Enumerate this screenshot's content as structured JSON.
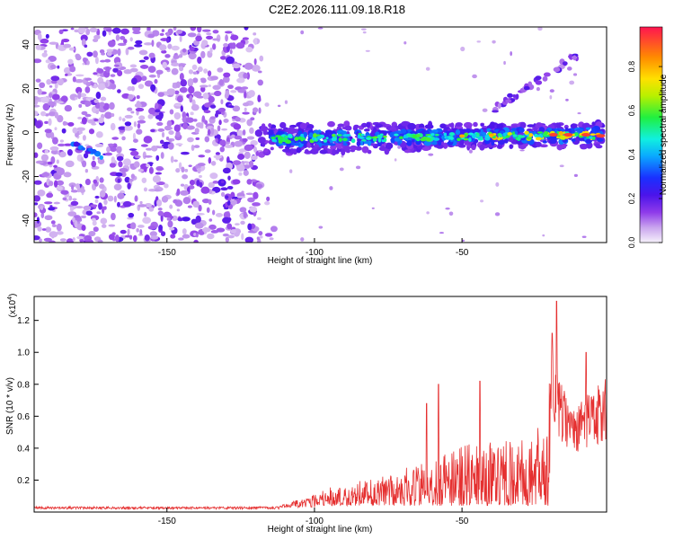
{
  "figure": {
    "title": "C2E2.2026.111.09.18.R18"
  },
  "chart_data": [
    {
      "type": "heatmap",
      "name": "spectrogram",
      "xlabel": "Height of straight line (km)",
      "ylabel": "Frequency (Hz)",
      "xlim": [
        -195,
        -1
      ],
      "ylim": [
        -50,
        48
      ],
      "xticks": [
        -150,
        -100,
        -50
      ],
      "yticks": [
        -40,
        -20,
        0,
        20,
        40
      ],
      "colorbar": {
        "label": "Normalized spectral amplitude",
        "range": [
          0,
          0.98
        ],
        "ticks": [
          0.0,
          0.2,
          0.4,
          0.6,
          0.8
        ]
      },
      "features": [
        {
          "description": "broadband noise",
          "x_range": [
            -195,
            -118
          ],
          "y_range": [
            -50,
            48
          ],
          "amplitude": 0.15
        },
        {
          "description": "main signal trace",
          "x_from": -118,
          "x_to": -2,
          "y_from": -3,
          "y_to": -1,
          "amplitude_max": 0.95
        },
        {
          "description": "faint harmonic line",
          "x_from": -40,
          "x_to": -10,
          "y_from": 10,
          "y_to": 36,
          "amplitude": 0.25
        },
        {
          "description": "short feature",
          "x_from": -182,
          "x_to": -172,
          "y_from": -5,
          "y_to": -11,
          "amplitude": 0.35
        }
      ]
    },
    {
      "type": "line",
      "name": "snr",
      "xlabel": "Height of straight line (km)",
      "ylabel": "SNR (10 * v/v)",
      "scale_label": "(x10",
      "scale_exponent": "4",
      "scale_close": ")",
      "xlim": [
        -195,
        -1
      ],
      "ylim": [
        0,
        1.35
      ],
      "xticks": [
        -150,
        -100,
        -50
      ],
      "yticks": [
        0.2,
        0.4,
        0.6,
        0.8,
        1.0,
        1.2
      ],
      "line_color": "#e53030",
      "envelope": [
        {
          "x": -195,
          "y": 0.02
        },
        {
          "x": -120,
          "y": 0.03
        },
        {
          "x": -112,
          "y": 0.04
        },
        {
          "x": -105,
          "y": 0.08
        },
        {
          "x": -100,
          "y": 0.12
        },
        {
          "x": -90,
          "y": 0.18
        },
        {
          "x": -80,
          "y": 0.2
        },
        {
          "x": -70,
          "y": 0.26
        },
        {
          "x": -60,
          "y": 0.33
        },
        {
          "x": -50,
          "y": 0.4
        },
        {
          "x": -40,
          "y": 0.43
        },
        {
          "x": -30,
          "y": 0.45
        },
        {
          "x": -23,
          "y": 0.52
        },
        {
          "x": -19,
          "y": 1.0
        },
        {
          "x": -17,
          "y": 0.82
        },
        {
          "x": -12,
          "y": 0.62
        },
        {
          "x": -5,
          "y": 0.75
        },
        {
          "x": -1,
          "y": 0.8
        }
      ],
      "peaks": [
        {
          "x": -18,
          "y": 1.32
        },
        {
          "x": -19.5,
          "y": 1.12
        },
        {
          "x": -8,
          "y": 1.0
        },
        {
          "x": -58,
          "y": 0.8
        },
        {
          "x": -44,
          "y": 0.82
        },
        {
          "x": -62,
          "y": 0.68
        }
      ]
    }
  ],
  "colors": {
    "axis": "#000000",
    "line": "#e53030",
    "noise": "#a674e6"
  }
}
